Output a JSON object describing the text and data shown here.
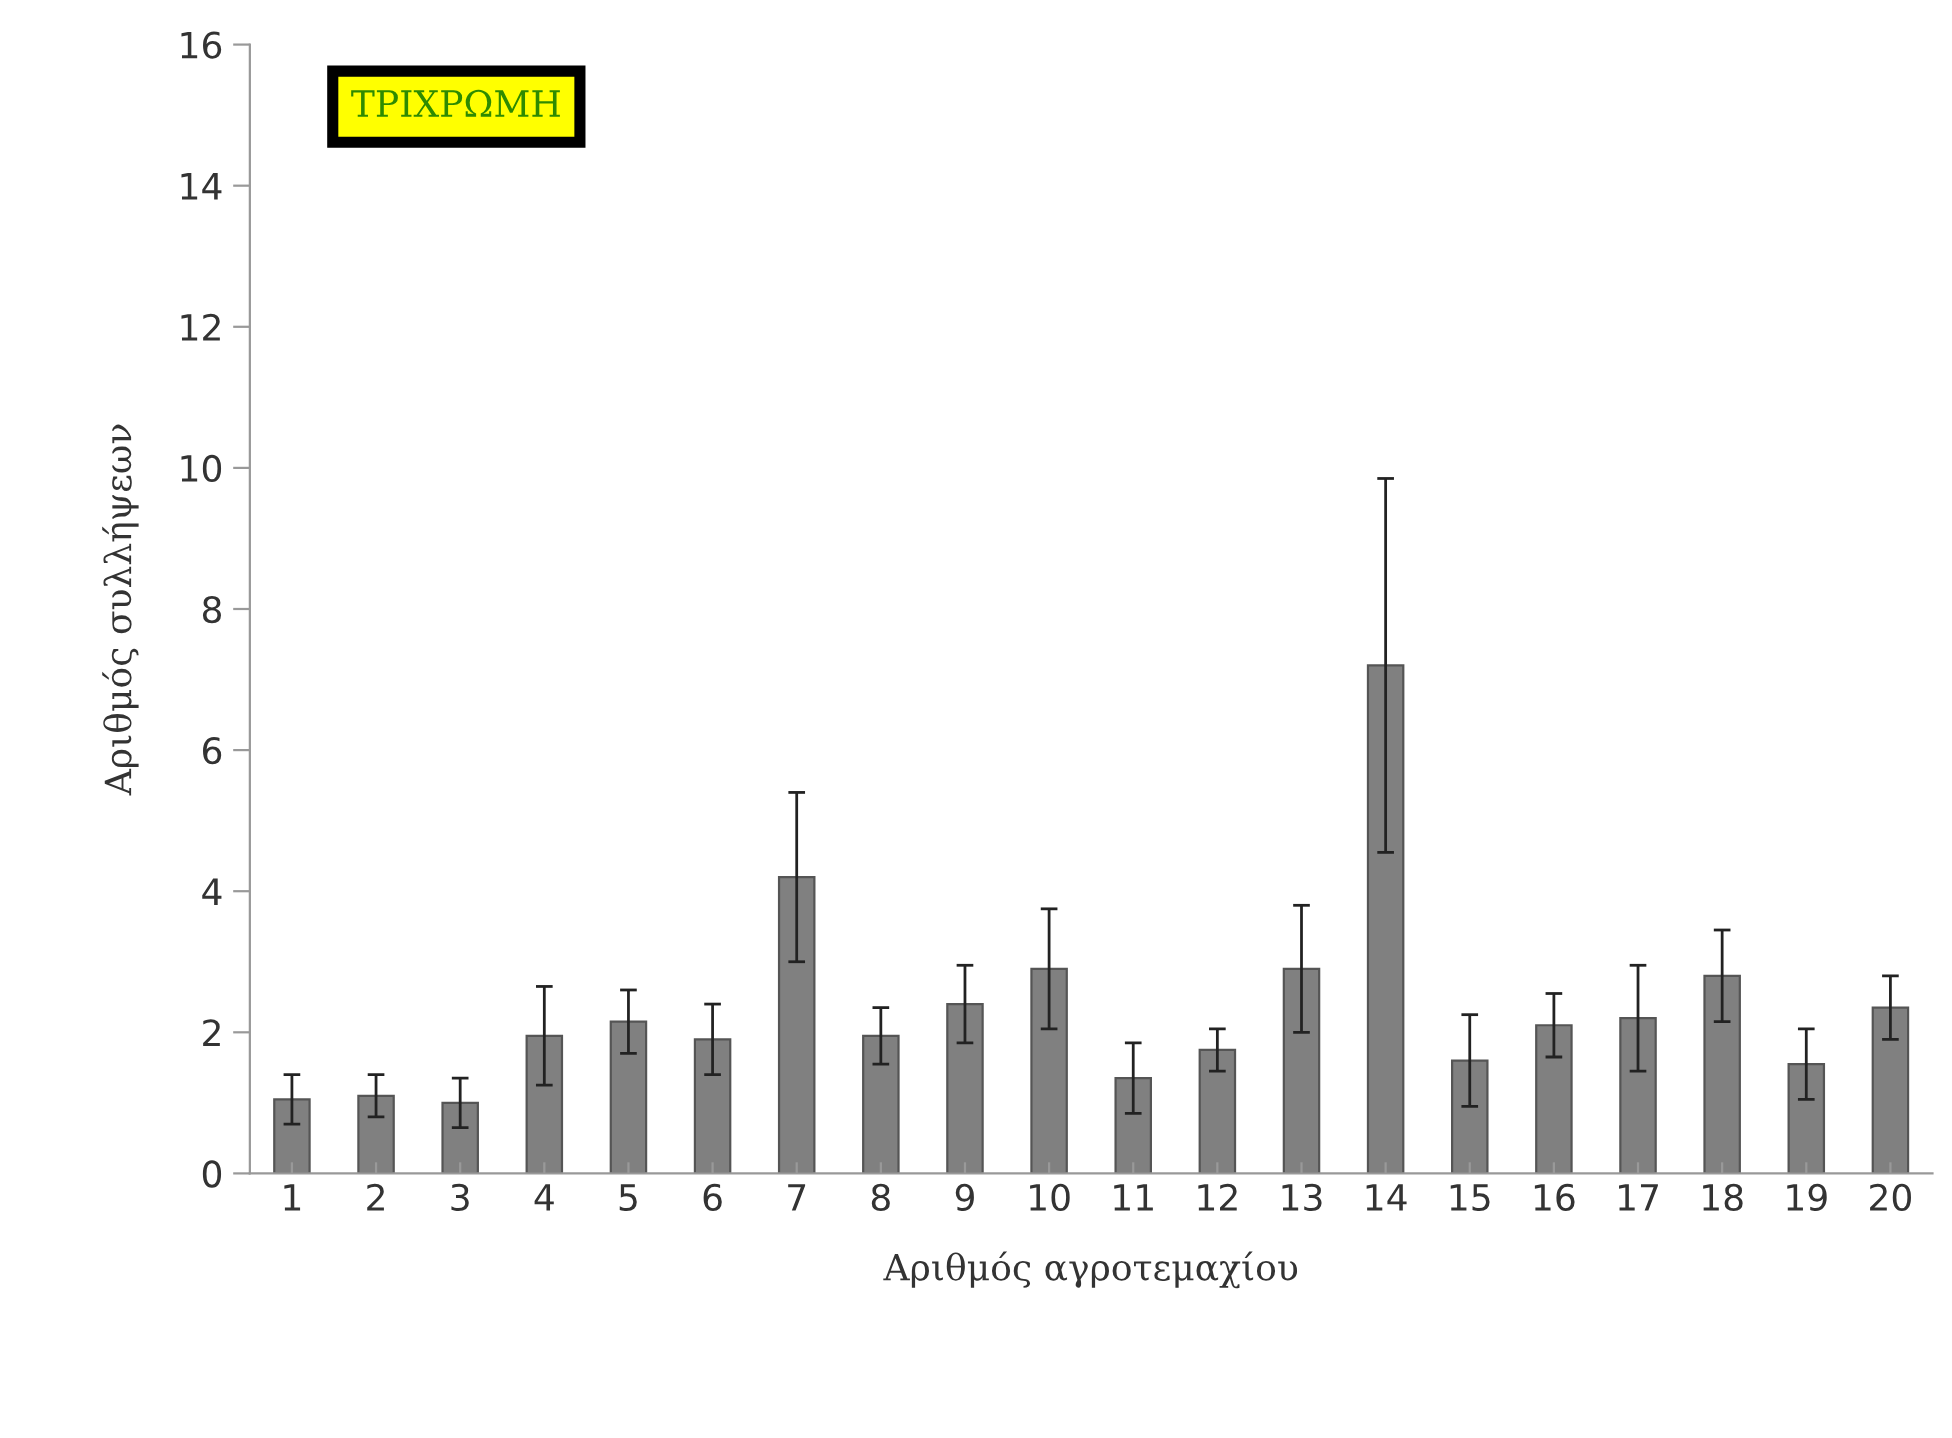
{
  "chart_data": {
    "type": "bar",
    "categories": [
      "1",
      "2",
      "3",
      "4",
      "5",
      "6",
      "7",
      "8",
      "9",
      "10",
      "11",
      "12",
      "13",
      "14",
      "15",
      "16",
      "17",
      "18",
      "19",
      "20"
    ],
    "values": [
      1.05,
      1.1,
      1.0,
      1.95,
      2.15,
      1.9,
      4.2,
      1.95,
      2.4,
      2.9,
      1.35,
      1.75,
      2.9,
      7.2,
      1.6,
      2.1,
      2.2,
      2.8,
      1.55,
      2.35
    ],
    "errors": [
      0.35,
      0.3,
      0.35,
      0.7,
      0.45,
      0.5,
      1.2,
      0.4,
      0.55,
      0.85,
      0.5,
      0.3,
      0.9,
      2.65,
      0.65,
      0.45,
      0.75,
      0.65,
      0.5,
      0.45
    ],
    "color": "#808080",
    "xlabel": "Αριθμός αγροτεμαχίου",
    "ylabel": "Αριθμός συλλήψεων",
    "annotations": [
      "ΤΡΙΧΡΩΜΗ"
    ],
    "ylim": [
      0,
      16
    ],
    "yticks": [
      0,
      2,
      4,
      6,
      8,
      10,
      12,
      14,
      16
    ],
    "grid": false,
    "legend": false
  }
}
